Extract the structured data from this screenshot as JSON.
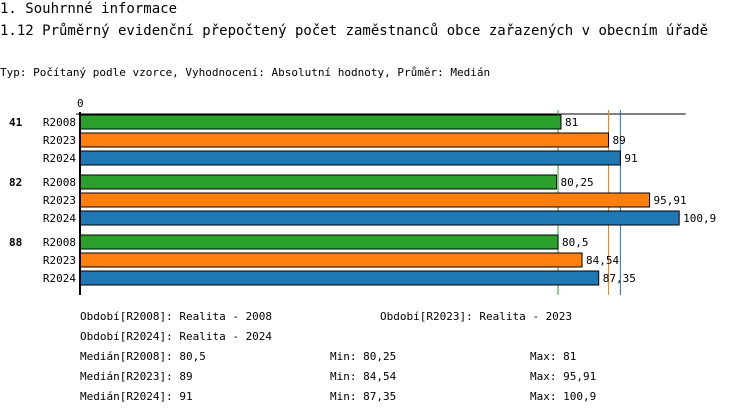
{
  "header": {
    "section": "1. Souhrnné informace",
    "title": "1.12 Průměrný evidenční přepočtený počet zaměstnanců obce zařazených v obecním úřadě",
    "subtitle": "Typ: Počítaný podle vzorce, Vyhodnocení: Absolutní hodnoty, Průměr: Medián"
  },
  "chart_data": {
    "type": "bar",
    "orientation": "horizontal",
    "x_tick_labels": [
      "0"
    ],
    "xlim": [
      0,
      102
    ],
    "groups": [
      "41",
      "82",
      "88"
    ],
    "series": [
      {
        "name": "R2008",
        "color": "#2ca02c",
        "values": [
          81,
          80.25,
          80.5
        ],
        "labels": [
          "81",
          "80,25",
          "80,5"
        ],
        "median": 80.5
      },
      {
        "name": "R2023",
        "color": "#ff7f0e",
        "values": [
          89,
          95.91,
          84.54
        ],
        "labels": [
          "89",
          "95,91",
          "84,54"
        ],
        "median": 89
      },
      {
        "name": "R2024",
        "color": "#1f77b4",
        "values": [
          91,
          100.9,
          87.35
        ],
        "labels": [
          "91",
          "100,9",
          "87,35"
        ],
        "median": 91
      }
    ]
  },
  "legend": {
    "periods": [
      "Období[R2008]: Realita - 2008",
      "Období[R2023]: Realita - 2023",
      "Období[R2024]: Realita - 2024"
    ],
    "stats": [
      [
        "Medián[R2008]: 80,5",
        "Min: 80,25",
        "Max: 81"
      ],
      [
        "Medián[R2023]: 89",
        "Min: 84,54",
        "Max: 95,91"
      ],
      [
        "Medián[R2024]: 91",
        "Min: 87,35",
        "Max: 100,9"
      ]
    ]
  }
}
